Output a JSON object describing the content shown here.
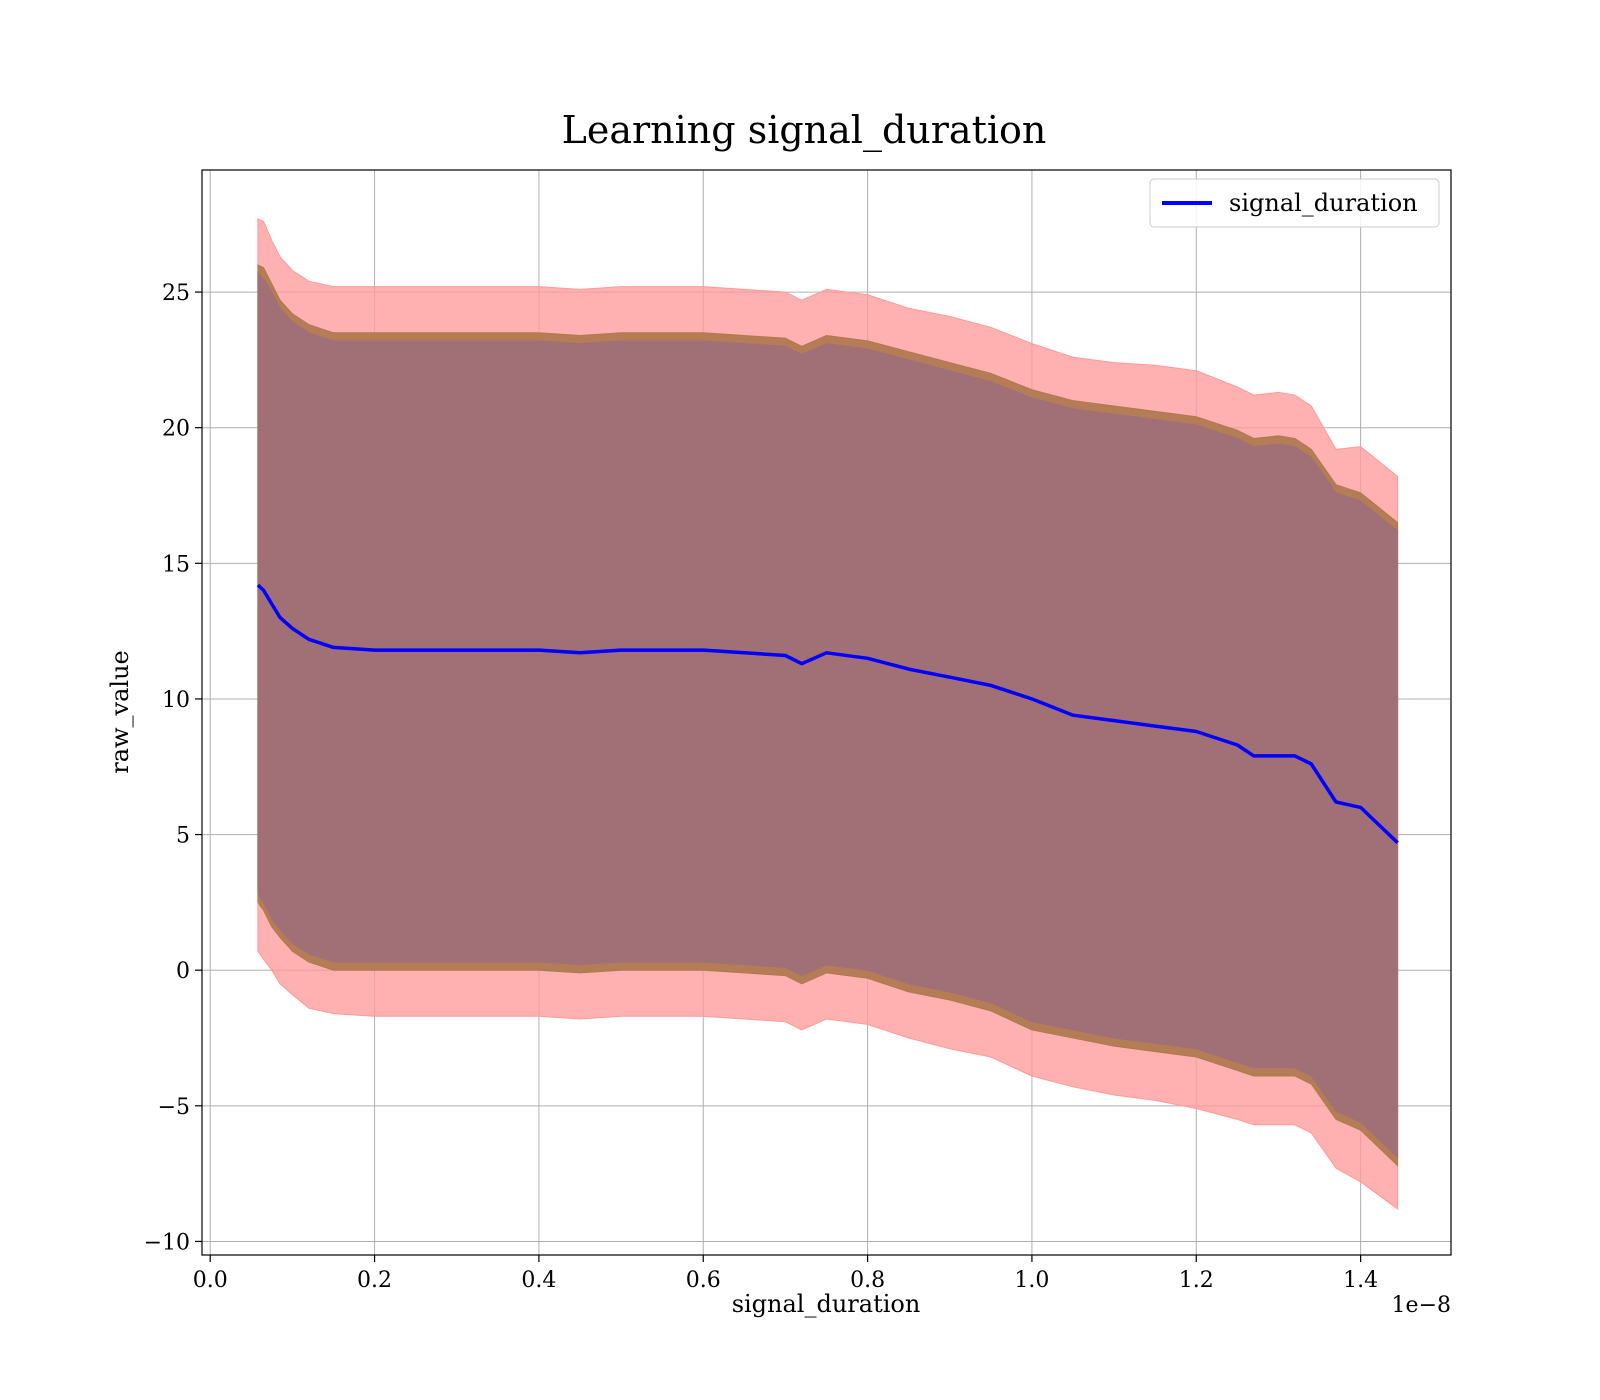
{
  "chart_data": {
    "type": "area",
    "title": "Learning signal_duration",
    "xlabel": "signal_duration",
    "ylabel": "raw_value",
    "x_offset_label": "1e−8",
    "xlim": [
      -0.01,
      1.51
    ],
    "ylim": [
      -10.5,
      29.5
    ],
    "x_ticks": [
      0.0,
      0.2,
      0.4,
      0.6,
      0.8,
      1.0,
      1.2,
      1.4
    ],
    "x_tick_labels": [
      "0.0",
      "0.2",
      "0.4",
      "0.6",
      "0.8",
      "1.0",
      "1.2",
      "1.4"
    ],
    "y_ticks": [
      -10,
      -5,
      0,
      5,
      10,
      15,
      20,
      25
    ],
    "y_tick_labels": [
      "−10",
      "−5",
      "0",
      "5",
      "10",
      "15",
      "20",
      "25"
    ],
    "grid": true,
    "legend_position": "top-right",
    "colors": {
      "mean_line": "#0000ff",
      "outer_band": "#ff9a9a",
      "middle_band": "#b07a50",
      "inner_band": "#a07078"
    },
    "series": [
      {
        "name": "signal_duration",
        "x": [
          0.058,
          0.065,
          0.075,
          0.085,
          0.1,
          0.12,
          0.15,
          0.2,
          0.25,
          0.3,
          0.35,
          0.4,
          0.45,
          0.5,
          0.55,
          0.6,
          0.65,
          0.7,
          0.72,
          0.75,
          0.8,
          0.85,
          0.9,
          0.95,
          1.0,
          1.05,
          1.1,
          1.15,
          1.2,
          1.25,
          1.27,
          1.3,
          1.32,
          1.34,
          1.37,
          1.4,
          1.445
        ],
        "values": [
          14.2,
          14.0,
          13.5,
          13.0,
          12.6,
          12.2,
          11.9,
          11.8,
          11.8,
          11.8,
          11.8,
          11.8,
          11.7,
          11.8,
          11.8,
          11.8,
          11.7,
          11.6,
          11.3,
          11.7,
          11.5,
          11.1,
          10.8,
          10.5,
          10.0,
          9.4,
          9.2,
          9.0,
          8.8,
          8.3,
          7.9,
          7.9,
          7.9,
          7.6,
          6.2,
          6.0,
          4.7
        ]
      }
    ],
    "bands": [
      {
        "x": [
          0.058,
          0.065,
          0.075,
          0.085,
          0.1,
          0.12,
          0.15,
          0.2,
          0.25,
          0.3,
          0.35,
          0.4,
          0.45,
          0.5,
          0.55,
          0.6,
          0.65,
          0.7,
          0.72,
          0.75,
          0.8,
          0.85,
          0.9,
          0.95,
          1.0,
          1.05,
          1.1,
          1.15,
          1.2,
          1.25,
          1.27,
          1.3,
          1.32,
          1.34,
          1.37,
          1.4,
          1.445
        ],
        "upper": [
          27.7,
          27.6,
          26.9,
          26.3,
          25.8,
          25.4,
          25.2,
          25.2,
          25.2,
          25.2,
          25.2,
          25.2,
          25.1,
          25.2,
          25.2,
          25.2,
          25.1,
          25.0,
          24.7,
          25.1,
          24.9,
          24.4,
          24.1,
          23.7,
          23.1,
          22.6,
          22.4,
          22.3,
          22.1,
          21.5,
          21.2,
          21.3,
          21.2,
          20.8,
          19.2,
          19.3,
          18.2
        ],
        "lower": [
          0.7,
          0.4,
          0.0,
          -0.5,
          -0.9,
          -1.4,
          -1.6,
          -1.7,
          -1.7,
          -1.7,
          -1.7,
          -1.7,
          -1.8,
          -1.7,
          -1.7,
          -1.7,
          -1.8,
          -1.9,
          -2.2,
          -1.8,
          -2.0,
          -2.5,
          -2.9,
          -3.2,
          -3.9,
          -4.3,
          -4.6,
          -4.8,
          -5.1,
          -5.5,
          -5.7,
          -5.7,
          -5.7,
          -6.0,
          -7.3,
          -7.8,
          -8.8
        ]
      },
      {
        "x": [
          0.058,
          0.065,
          0.075,
          0.085,
          0.1,
          0.12,
          0.15,
          0.2,
          0.25,
          0.3,
          0.35,
          0.4,
          0.45,
          0.5,
          0.55,
          0.6,
          0.65,
          0.7,
          0.72,
          0.75,
          0.8,
          0.85,
          0.9,
          0.95,
          1.0,
          1.05,
          1.1,
          1.15,
          1.2,
          1.25,
          1.27,
          1.3,
          1.32,
          1.34,
          1.37,
          1.4,
          1.445
        ],
        "upper": [
          26.0,
          25.9,
          25.3,
          24.7,
          24.2,
          23.8,
          23.5,
          23.5,
          23.5,
          23.5,
          23.5,
          23.5,
          23.4,
          23.5,
          23.5,
          23.5,
          23.4,
          23.3,
          23.0,
          23.4,
          23.2,
          22.8,
          22.4,
          22.0,
          21.4,
          21.0,
          20.8,
          20.6,
          20.4,
          19.9,
          19.6,
          19.7,
          19.6,
          19.2,
          17.9,
          17.6,
          16.5
        ],
        "lower": [
          2.5,
          2.2,
          1.6,
          1.2,
          0.7,
          0.3,
          0.0,
          0.0,
          0.0,
          0.0,
          0.0,
          0.0,
          -0.1,
          0.0,
          0.0,
          0.0,
          -0.1,
          -0.2,
          -0.5,
          -0.1,
          -0.3,
          -0.8,
          -1.1,
          -1.5,
          -2.2,
          -2.5,
          -2.8,
          -3.0,
          -3.2,
          -3.7,
          -3.9,
          -3.9,
          -3.9,
          -4.2,
          -5.5,
          -5.9,
          -7.2
        ]
      },
      {
        "x": [
          0.058,
          0.065,
          0.075,
          0.085,
          0.1,
          0.12,
          0.15,
          0.2,
          0.25,
          0.3,
          0.35,
          0.4,
          0.45,
          0.5,
          0.55,
          0.6,
          0.65,
          0.7,
          0.72,
          0.75,
          0.8,
          0.85,
          0.9,
          0.95,
          1.0,
          1.05,
          1.1,
          1.15,
          1.2,
          1.25,
          1.27,
          1.3,
          1.32,
          1.34,
          1.37,
          1.4,
          1.445
        ],
        "upper": [
          25.7,
          25.5,
          25.0,
          24.4,
          23.9,
          23.5,
          23.2,
          23.2,
          23.2,
          23.2,
          23.2,
          23.2,
          23.1,
          23.2,
          23.2,
          23.2,
          23.1,
          23.0,
          22.7,
          23.1,
          22.9,
          22.5,
          22.1,
          21.7,
          21.1,
          20.7,
          20.5,
          20.3,
          20.1,
          19.6,
          19.3,
          19.4,
          19.3,
          18.9,
          17.6,
          17.3,
          16.2
        ],
        "lower": [
          2.8,
          2.5,
          1.9,
          1.5,
          1.0,
          0.6,
          0.3,
          0.3,
          0.3,
          0.3,
          0.3,
          0.3,
          0.2,
          0.3,
          0.3,
          0.3,
          0.2,
          0.1,
          -0.2,
          0.2,
          0.0,
          -0.5,
          -0.8,
          -1.2,
          -1.9,
          -2.2,
          -2.5,
          -2.7,
          -2.9,
          -3.4,
          -3.6,
          -3.6,
          -3.6,
          -3.9,
          -5.2,
          -5.6,
          -6.9
        ]
      }
    ]
  }
}
